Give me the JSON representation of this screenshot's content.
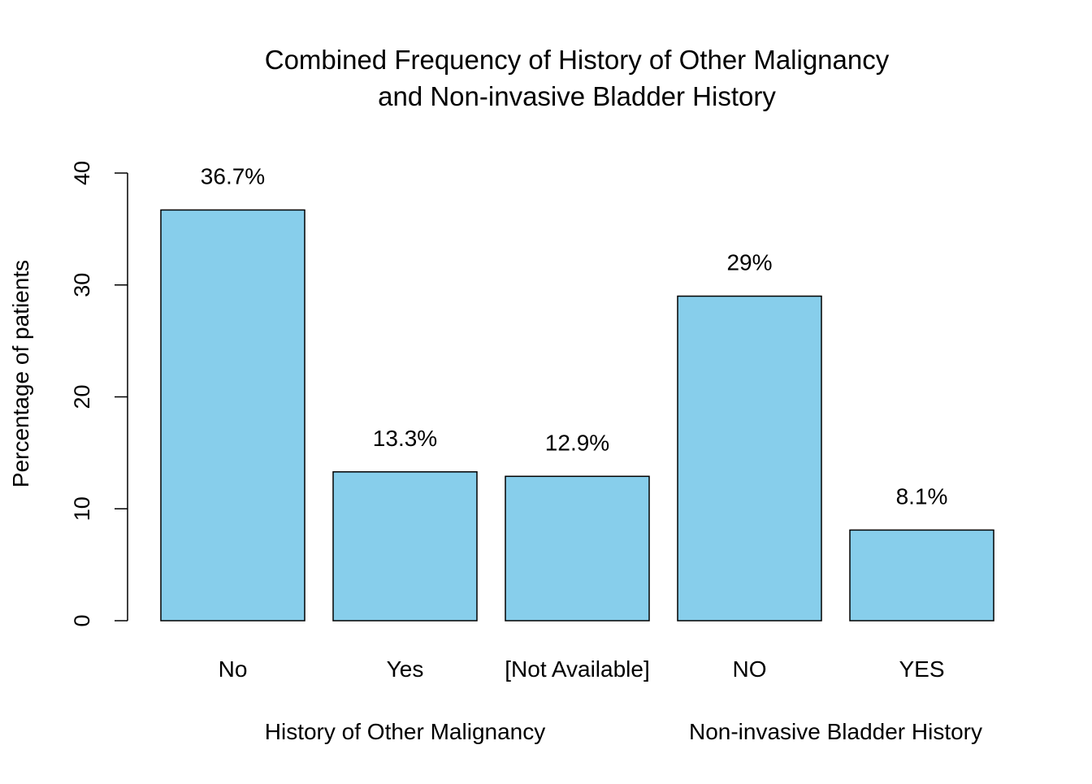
{
  "chart_data": {
    "type": "bar",
    "title": [
      "Combined Frequency of History of Other Malignancy",
      "and Non-invasive Bladder History"
    ],
    "ylabel": "Percentage of patients",
    "ylim": [
      0,
      40
    ],
    "yticks": [
      "0",
      "10",
      "20",
      "30",
      "40"
    ],
    "grid": false,
    "bar_color": "#87CEEB",
    "categories": [
      "No",
      "Yes",
      "[Not Available]",
      "NO",
      "YES"
    ],
    "values": [
      36.7,
      13.3,
      12.9,
      29,
      8.1
    ],
    "data_labels": [
      "36.7%",
      "13.3%",
      "12.9%",
      "29%",
      "8.1%"
    ],
    "groups": [
      {
        "label": "History of Other Malignancy",
        "categories": [
          "No",
          "Yes",
          "[Not Available]"
        ]
      },
      {
        "label": "Non-invasive Bladder History",
        "categories": [
          "NO",
          "YES"
        ]
      }
    ]
  }
}
